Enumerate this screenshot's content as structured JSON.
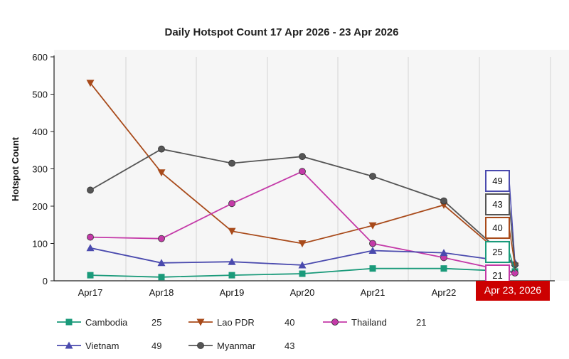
{
  "chart_data": {
    "type": "line",
    "title": "Daily Hotspot Count 17 Apr 2026 - 23 Apr 2026",
    "ylabel": "Hotspot Count",
    "xlabel": "",
    "categories": [
      "Apr17",
      "Apr18",
      "Apr19",
      "Apr20",
      "Apr21",
      "Apr22",
      "Apr23"
    ],
    "ylim": [
      0,
      600
    ],
    "yticks": [
      0,
      100,
      200,
      300,
      400,
      500,
      600
    ],
    "grid": "vertical",
    "tooltip_label": "Apr 23, 2026",
    "series": [
      {
        "name": "Cambodia",
        "legend_value": "25",
        "color": "#1a9a7a",
        "marker": "square",
        "values": [
          15,
          10,
          15,
          19,
          33,
          33,
          25
        ]
      },
      {
        "name": "Lao PDR",
        "legend_value": "40",
        "color": "#a84a1a",
        "marker": "triangle-down",
        "values": [
          530,
          290,
          133,
          100,
          148,
          203,
          40
        ]
      },
      {
        "name": "Thailand",
        "legend_value": "21",
        "color": "#c43aa8",
        "marker": "circle",
        "values": [
          117,
          113,
          207,
          293,
          100,
          62,
          21
        ]
      },
      {
        "name": "Vietnam",
        "legend_value": "49",
        "color": "#4a4aae",
        "marker": "triangle-up",
        "values": [
          88,
          48,
          51,
          42,
          81,
          75,
          49
        ]
      },
      {
        "name": "Myanmar",
        "legend_value": "43",
        "color": "#555555",
        "marker": "circle",
        "values": [
          243,
          353,
          315,
          333,
          280,
          214,
          43
        ]
      }
    ],
    "callouts": [
      {
        "series": "Vietnam",
        "text": "49",
        "color": "#4a4aae"
      },
      {
        "series": "Myanmar",
        "text": "43",
        "color": "#555555"
      },
      {
        "series": "Lao PDR",
        "text": "40",
        "color": "#a84a1a"
      },
      {
        "series": "Cambodia",
        "text": "25",
        "color": "#1a9a7a"
      },
      {
        "series": "Thailand",
        "text": "21",
        "color": "#c43aa8"
      }
    ]
  }
}
